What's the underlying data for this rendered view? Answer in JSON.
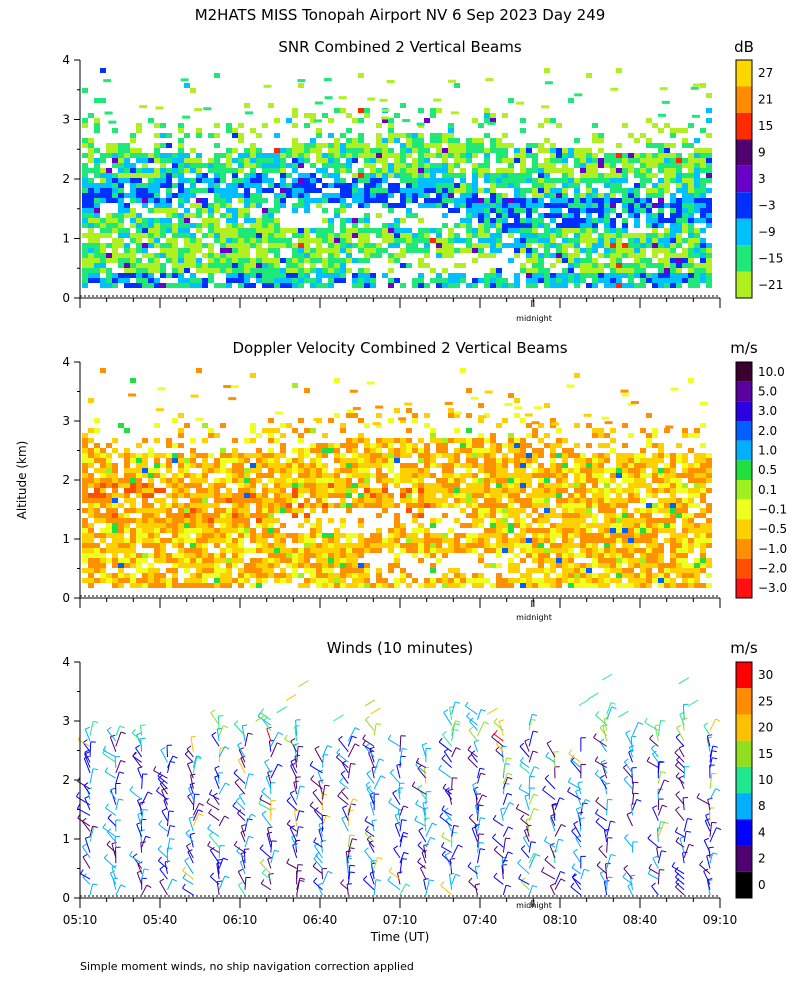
{
  "figure": {
    "title": "M2HATS MISS Tonopah Airport NV   6 Sep 2023 Day 249",
    "ylabel": "Altitude (km)",
    "xlabel": "Time (UT)",
    "footnote": "Simple moment winds, no ship navigation correction applied",
    "midnight_label": "midnight"
  },
  "chart_data": [
    {
      "type": "heatmap",
      "title": "SNR Combined 2 Vertical Beams",
      "xlabel": "Time (UT)",
      "ylabel": "Altitude (km)",
      "xlim": [
        "05:10",
        "09:10"
      ],
      "ylim": [
        0,
        4
      ],
      "yticks": [
        "0",
        "1",
        "2",
        "3",
        "4"
      ],
      "colorbar": {
        "unit": "dB",
        "labels": [
          "27",
          "21",
          "15",
          "9",
          "3",
          "−3",
          "−9",
          "−15",
          "−21"
        ],
        "colors": [
          "#ffd700",
          "#ff8c00",
          "#ff2a00",
          "#500070",
          "#6a00c8",
          "#0030ff",
          "#00c0ff",
          "#20e878",
          "#b0f020"
        ]
      }
    },
    {
      "type": "heatmap",
      "title": "Doppler Velocity Combined 2 Vertical Beams",
      "xlabel": "Time (UT)",
      "ylabel": "Altitude (km)",
      "xlim": [
        "05:10",
        "09:10"
      ],
      "ylim": [
        0,
        4
      ],
      "yticks": [
        "0",
        "1",
        "2",
        "3",
        "4"
      ],
      "colorbar": {
        "unit": "m/s",
        "labels": [
          "10.0",
          "5.0",
          "3.0",
          "2.0",
          "1.0",
          "0.5",
          "0.1",
          "−0.1",
          "−0.5",
          "−1.0",
          "−2.0",
          "−3.0"
        ],
        "colors": [
          "#3a0030",
          "#5a00a0",
          "#2a00e0",
          "#0060ff",
          "#00b0ff",
          "#20e040",
          "#a0f020",
          "#f0ff20",
          "#ffd000",
          "#ff9000",
          "#ff5000",
          "#ff1010"
        ]
      }
    },
    {
      "type": "scatter",
      "title": "Winds (10 minutes)",
      "xlabel": "Time (UT)",
      "ylabel": "Altitude (km)",
      "xlim": [
        "05:10",
        "09:10"
      ],
      "ylim": [
        0,
        4
      ],
      "xticks": [
        "05:10",
        "05:40",
        "06:10",
        "06:40",
        "07:10",
        "07:40",
        "08:10",
        "08:40",
        "09:10"
      ],
      "yticks": [
        "0",
        "1",
        "2",
        "3",
        "4"
      ],
      "colorbar": {
        "unit": "m/s",
        "labels": [
          "30",
          "25",
          "20",
          "15",
          "10",
          "8",
          "4",
          "2",
          "0"
        ],
        "colors": [
          "#ff0000",
          "#ff8c00",
          "#ffc000",
          "#90e020",
          "#20e890",
          "#00b0ff",
          "#0000ff",
          "#500070",
          "#000000"
        ]
      }
    }
  ]
}
